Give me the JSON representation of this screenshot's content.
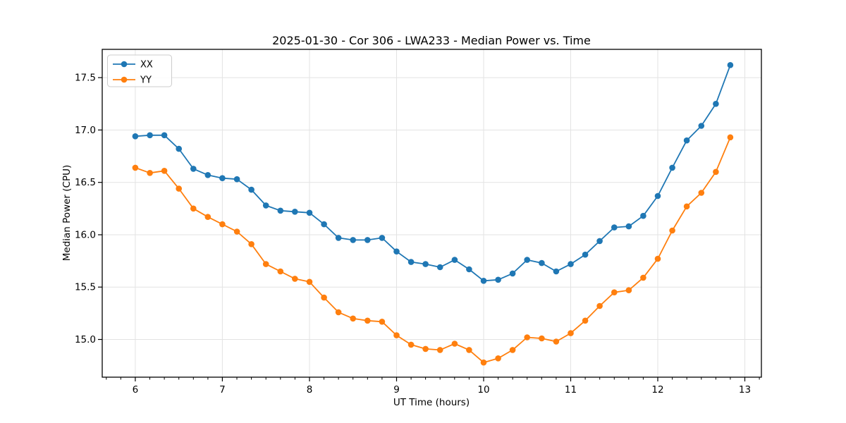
{
  "title": "2025-01-30 - Cor 306 - LWA233 - Median Power vs. Time",
  "chart_data": {
    "type": "line",
    "title": "2025-01-30 - Cor 306 - LWA233 - Median Power vs. Time",
    "xlabel": "UT Time (hours)",
    "ylabel": "Median Power (CPU)",
    "xlim": [
      5.62,
      13.19
    ],
    "ylim": [
      14.64,
      17.77
    ],
    "xticks": [
      6,
      7,
      8,
      9,
      10,
      11,
      12,
      13
    ],
    "yticks": [
      15.0,
      15.5,
      16.0,
      16.5,
      17.0,
      17.5
    ],
    "x_minor_step": 0.1666667,
    "grid": true,
    "grid_color": "#e3e3e3",
    "spine_color": "#000000",
    "legend_position": "upper-left",
    "x": [
      6.0,
      6.167,
      6.333,
      6.5,
      6.667,
      6.833,
      7.0,
      7.167,
      7.333,
      7.5,
      7.667,
      7.833,
      8.0,
      8.167,
      8.333,
      8.5,
      8.667,
      8.833,
      9.0,
      9.167,
      9.333,
      9.5,
      9.667,
      9.833,
      10.0,
      10.167,
      10.333,
      10.5,
      10.667,
      10.833,
      11.0,
      11.167,
      11.333,
      11.5,
      11.667,
      11.833,
      12.0,
      12.167,
      12.333,
      12.5,
      12.667,
      12.833
    ],
    "series": [
      {
        "name": "XX",
        "color": "#1f77b4",
        "values": [
          16.94,
          16.95,
          16.95,
          16.82,
          16.63,
          16.57,
          16.54,
          16.53,
          16.43,
          16.28,
          16.23,
          16.22,
          16.21,
          16.1,
          15.97,
          15.95,
          15.95,
          15.97,
          15.84,
          15.74,
          15.72,
          15.69,
          15.76,
          15.67,
          15.56,
          15.57,
          15.63,
          15.76,
          15.73,
          15.65,
          15.72,
          15.81,
          15.94,
          16.07,
          16.08,
          16.18,
          16.37,
          16.64,
          16.9,
          17.04,
          17.25,
          17.62
        ]
      },
      {
        "name": "YY",
        "color": "#ff7f0e",
        "values": [
          16.64,
          16.59,
          16.61,
          16.44,
          16.25,
          16.17,
          16.1,
          16.03,
          15.91,
          15.72,
          15.65,
          15.58,
          15.55,
          15.4,
          15.26,
          15.2,
          15.18,
          15.17,
          15.04,
          14.95,
          14.91,
          14.9,
          14.96,
          14.9,
          14.78,
          14.82,
          14.9,
          15.02,
          15.01,
          14.98,
          15.06,
          15.18,
          15.32,
          15.45,
          15.47,
          15.59,
          15.77,
          16.04,
          16.27,
          16.4,
          16.6,
          16.93
        ]
      }
    ],
    "legend": [
      {
        "label": "XX",
        "color": "#1f77b4"
      },
      {
        "label": "YY",
        "color": "#ff7f0e"
      }
    ]
  }
}
